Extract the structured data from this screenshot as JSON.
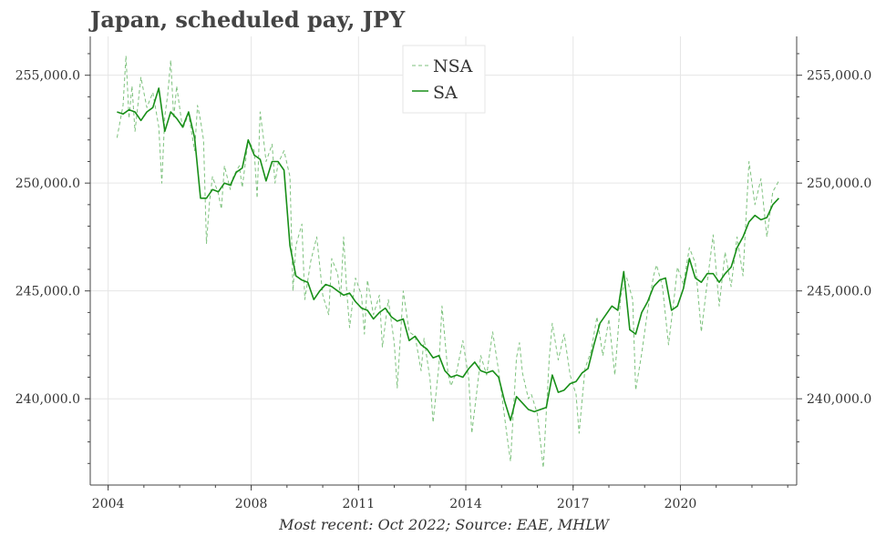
{
  "chart_data": {
    "type": "line",
    "title": "Japan, scheduled pay, JPY",
    "caption": "Most recent: Oct 2022; Source: EAE, MHLW",
    "xlim": [
      "2003-07",
      "2023-04"
    ],
    "ylim": [
      236000,
      256800
    ],
    "y_ticks": [
      240000,
      245000,
      250000,
      255000
    ],
    "y_tick_labels": [
      "240,000.0",
      "245,000.0",
      "250,000.0",
      "255,000.0"
    ],
    "x_ticks": [
      "2004",
      "2008",
      "2011",
      "2014",
      "2017",
      "2020"
    ],
    "x_tick_labels": [
      "2004",
      "2008",
      "2011",
      "2014",
      "2017",
      "2020"
    ],
    "grid": true,
    "legend_position": "top-center",
    "legend": [
      "NSA",
      "SA"
    ],
    "series": [
      {
        "name": "NSA",
        "style": "dashed",
        "color": "#7dc17d",
        "points": [
          [
            "2004-04",
            252100
          ],
          [
            "2004-06",
            253600
          ],
          [
            "2004-07",
            255900
          ],
          [
            "2004-08",
            253000
          ],
          [
            "2004-09",
            254500
          ],
          [
            "2004-10",
            252400
          ],
          [
            "2004-12",
            254900
          ],
          [
            "2005-02",
            253500
          ],
          [
            "2005-04",
            254200
          ],
          [
            "2005-06",
            252600
          ],
          [
            "2005-07",
            250000
          ],
          [
            "2005-08",
            253100
          ],
          [
            "2005-09",
            254100
          ],
          [
            "2005-10",
            255700
          ],
          [
            "2005-11",
            253000
          ],
          [
            "2005-12",
            254500
          ],
          [
            "2006-02",
            252500
          ],
          [
            "2006-04",
            253200
          ],
          [
            "2006-06",
            251500
          ],
          [
            "2006-07",
            253600
          ],
          [
            "2006-08",
            252900
          ],
          [
            "2006-09",
            252000
          ],
          [
            "2006-10",
            247200
          ],
          [
            "2006-11",
            249100
          ],
          [
            "2006-12",
            250300
          ],
          [
            "2007-02",
            249500
          ],
          [
            "2007-03",
            248800
          ],
          [
            "2007-04",
            250800
          ],
          [
            "2007-06",
            249700
          ],
          [
            "2007-07",
            250300
          ],
          [
            "2007-09",
            250800
          ],
          [
            "2007-10",
            249800
          ],
          [
            "2007-12",
            252000
          ],
          [
            "2008-02",
            251500
          ],
          [
            "2008-03",
            249300
          ],
          [
            "2008-04",
            253300
          ],
          [
            "2008-05",
            252200
          ],
          [
            "2008-06",
            251000
          ],
          [
            "2008-08",
            251800
          ],
          [
            "2008-09",
            250000
          ],
          [
            "2008-10",
            250900
          ],
          [
            "2008-12",
            251500
          ],
          [
            "2009-02",
            250300
          ],
          [
            "2009-03",
            245000
          ],
          [
            "2009-04",
            247100
          ],
          [
            "2009-06",
            248100
          ],
          [
            "2009-07",
            244600
          ],
          [
            "2009-09",
            246400
          ],
          [
            "2009-11",
            247500
          ],
          [
            "2010-01",
            244800
          ],
          [
            "2010-03",
            243900
          ],
          [
            "2010-04",
            246500
          ],
          [
            "2010-06",
            245800
          ],
          [
            "2010-07",
            244700
          ],
          [
            "2010-08",
            247500
          ],
          [
            "2010-09",
            245100
          ],
          [
            "2010-10",
            243300
          ],
          [
            "2010-12",
            245600
          ],
          [
            "2011-02",
            244800
          ],
          [
            "2011-03",
            243000
          ],
          [
            "2011-04",
            245500
          ],
          [
            "2011-06",
            243900
          ],
          [
            "2011-08",
            244800
          ],
          [
            "2011-09",
            242400
          ],
          [
            "2011-11",
            244600
          ],
          [
            "2012-01",
            242600
          ],
          [
            "2012-02",
            240500
          ],
          [
            "2012-04",
            245000
          ],
          [
            "2012-06",
            243100
          ],
          [
            "2012-08",
            242900
          ],
          [
            "2012-10",
            241300
          ],
          [
            "2012-11",
            242800
          ],
          [
            "2013-01",
            240900
          ],
          [
            "2013-02",
            238900
          ],
          [
            "2013-04",
            241600
          ],
          [
            "2013-05",
            244300
          ],
          [
            "2013-07",
            241200
          ],
          [
            "2013-08",
            240600
          ],
          [
            "2013-10",
            241300
          ],
          [
            "2013-12",
            242700
          ],
          [
            "2014-02",
            240900
          ],
          [
            "2014-03",
            238400
          ],
          [
            "2014-05",
            240700
          ],
          [
            "2014-06",
            242000
          ],
          [
            "2014-08",
            241100
          ],
          [
            "2014-10",
            243100
          ],
          [
            "2014-12",
            241300
          ],
          [
            "2015-03",
            238100
          ],
          [
            "2015-04",
            237100
          ],
          [
            "2015-06",
            241900
          ],
          [
            "2015-07",
            242600
          ],
          [
            "2015-08",
            241200
          ],
          [
            "2015-10",
            240000
          ],
          [
            "2015-11",
            240200
          ],
          [
            "2016-01",
            239300
          ],
          [
            "2016-03",
            236800
          ],
          [
            "2016-05",
            241900
          ],
          [
            "2016-06",
            243500
          ],
          [
            "2016-08",
            241800
          ],
          [
            "2016-10",
            243000
          ],
          [
            "2016-12",
            241100
          ],
          [
            "2017-02",
            240200
          ],
          [
            "2017-03",
            238400
          ],
          [
            "2017-05",
            241400
          ],
          [
            "2017-07",
            242200
          ],
          [
            "2017-09",
            243800
          ],
          [
            "2017-11",
            242000
          ],
          [
            "2018-01",
            243700
          ],
          [
            "2018-03",
            241100
          ],
          [
            "2018-05",
            244800
          ],
          [
            "2018-07",
            245600
          ],
          [
            "2018-09",
            244600
          ],
          [
            "2018-10",
            240400
          ],
          [
            "2018-12",
            242100
          ],
          [
            "2019-02",
            244100
          ],
          [
            "2019-04",
            245700
          ],
          [
            "2019-05",
            246200
          ],
          [
            "2019-07",
            245200
          ],
          [
            "2019-09",
            242500
          ],
          [
            "2019-11",
            244800
          ],
          [
            "2019-12",
            246100
          ],
          [
            "2020-02",
            245300
          ],
          [
            "2020-04",
            247000
          ],
          [
            "2020-06",
            246300
          ],
          [
            "2020-08",
            243100
          ],
          [
            "2020-10",
            245400
          ],
          [
            "2020-12",
            247600
          ],
          [
            "2021-02",
            244300
          ],
          [
            "2021-04",
            246800
          ],
          [
            "2021-06",
            245200
          ],
          [
            "2021-08",
            247500
          ],
          [
            "2021-10",
            245700
          ],
          [
            "2021-12",
            251000
          ],
          [
            "2022-02",
            249000
          ],
          [
            "2022-04",
            250200
          ],
          [
            "2022-06",
            247500
          ],
          [
            "2022-08",
            249600
          ],
          [
            "2022-10",
            250100
          ]
        ]
      },
      {
        "name": "SA",
        "style": "solid",
        "color": "#188f18",
        "points": [
          [
            "2004-04",
            253300
          ],
          [
            "2004-06",
            253200
          ],
          [
            "2004-08",
            253400
          ],
          [
            "2004-10",
            253300
          ],
          [
            "2004-12",
            252900
          ],
          [
            "2005-02",
            253300
          ],
          [
            "2005-04",
            253500
          ],
          [
            "2005-06",
            254400
          ],
          [
            "2005-08",
            252400
          ],
          [
            "2005-10",
            253300
          ],
          [
            "2005-12",
            253000
          ],
          [
            "2006-02",
            252600
          ],
          [
            "2006-04",
            253300
          ],
          [
            "2006-06",
            252100
          ],
          [
            "2006-08",
            249300
          ],
          [
            "2006-10",
            249300
          ],
          [
            "2006-12",
            249700
          ],
          [
            "2007-02",
            249600
          ],
          [
            "2007-04",
            250000
          ],
          [
            "2007-06",
            249900
          ],
          [
            "2007-08",
            250500
          ],
          [
            "2007-10",
            250700
          ],
          [
            "2007-12",
            252000
          ],
          [
            "2008-02",
            251300
          ],
          [
            "2008-04",
            251100
          ],
          [
            "2008-06",
            250100
          ],
          [
            "2008-08",
            251000
          ],
          [
            "2008-10",
            251000
          ],
          [
            "2008-12",
            250600
          ],
          [
            "2009-02",
            247100
          ],
          [
            "2009-04",
            245700
          ],
          [
            "2009-06",
            245500
          ],
          [
            "2009-08",
            245400
          ],
          [
            "2009-10",
            244600
          ],
          [
            "2009-12",
            245000
          ],
          [
            "2010-02",
            245300
          ],
          [
            "2010-04",
            245200
          ],
          [
            "2010-06",
            245000
          ],
          [
            "2010-08",
            244800
          ],
          [
            "2010-10",
            244900
          ],
          [
            "2010-12",
            244500
          ],
          [
            "2011-02",
            244200
          ],
          [
            "2011-04",
            244100
          ],
          [
            "2011-06",
            243700
          ],
          [
            "2011-08",
            244000
          ],
          [
            "2011-10",
            244200
          ],
          [
            "2011-12",
            243800
          ],
          [
            "2012-02",
            243600
          ],
          [
            "2012-04",
            243700
          ],
          [
            "2012-06",
            242700
          ],
          [
            "2012-08",
            242900
          ],
          [
            "2012-10",
            242500
          ],
          [
            "2012-12",
            242300
          ],
          [
            "2013-02",
            241900
          ],
          [
            "2013-04",
            242000
          ],
          [
            "2013-06",
            241300
          ],
          [
            "2013-08",
            241000
          ],
          [
            "2013-10",
            241100
          ],
          [
            "2013-12",
            241000
          ],
          [
            "2014-02",
            241400
          ],
          [
            "2014-04",
            241700
          ],
          [
            "2014-06",
            241300
          ],
          [
            "2014-08",
            241200
          ],
          [
            "2014-10",
            241300
          ],
          [
            "2014-12",
            241000
          ],
          [
            "2015-02",
            239900
          ],
          [
            "2015-04",
            239000
          ],
          [
            "2015-06",
            240100
          ],
          [
            "2015-08",
            239800
          ],
          [
            "2015-10",
            239500
          ],
          [
            "2015-12",
            239400
          ],
          [
            "2016-02",
            239500
          ],
          [
            "2016-04",
            239600
          ],
          [
            "2016-06",
            241100
          ],
          [
            "2016-08",
            240300
          ],
          [
            "2016-10",
            240400
          ],
          [
            "2016-12",
            240700
          ],
          [
            "2017-02",
            240800
          ],
          [
            "2017-04",
            241200
          ],
          [
            "2017-06",
            241400
          ],
          [
            "2017-08",
            242500
          ],
          [
            "2017-10",
            243500
          ],
          [
            "2017-12",
            243900
          ],
          [
            "2018-02",
            244300
          ],
          [
            "2018-04",
            244100
          ],
          [
            "2018-06",
            245900
          ],
          [
            "2018-08",
            243200
          ],
          [
            "2018-10",
            243000
          ],
          [
            "2018-12",
            244000
          ],
          [
            "2019-02",
            244500
          ],
          [
            "2019-04",
            245200
          ],
          [
            "2019-06",
            245500
          ],
          [
            "2019-08",
            245600
          ],
          [
            "2019-10",
            244100
          ],
          [
            "2019-12",
            244300
          ],
          [
            "2020-02",
            245100
          ],
          [
            "2020-04",
            246500
          ],
          [
            "2020-06",
            245600
          ],
          [
            "2020-08",
            245400
          ],
          [
            "2020-10",
            245800
          ],
          [
            "2020-12",
            245800
          ],
          [
            "2021-02",
            245400
          ],
          [
            "2021-04",
            245800
          ],
          [
            "2021-06",
            246100
          ],
          [
            "2021-08",
            247000
          ],
          [
            "2021-10",
            247500
          ],
          [
            "2021-12",
            248200
          ],
          [
            "2022-02",
            248500
          ],
          [
            "2022-04",
            248300
          ],
          [
            "2022-06",
            248400
          ],
          [
            "2022-08",
            249000
          ],
          [
            "2022-10",
            249300
          ]
        ]
      }
    ]
  }
}
